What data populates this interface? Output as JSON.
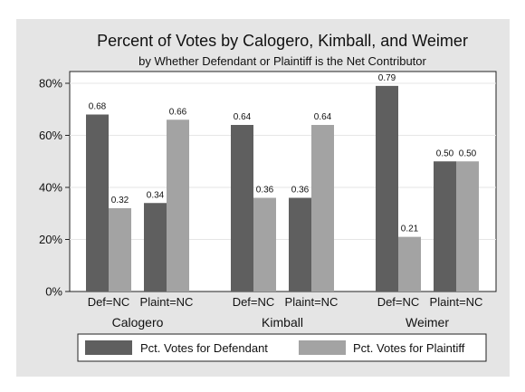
{
  "chart_data": {
    "type": "bar",
    "title": "Percent of Votes by Calogero, Kimball, and Weimer",
    "subtitle": "by Whether Defendant or Plaintiff is the Net Contributor",
    "groups": [
      {
        "name": "Calogero",
        "categories": [
          "Def=NC",
          "Plaint=NC"
        ]
      },
      {
        "name": "Kimball",
        "categories": [
          "Def=NC",
          "Plaint=NC"
        ]
      },
      {
        "name": "Weimer",
        "categories": [
          "Def=NC",
          "Plaint=NC"
        ]
      }
    ],
    "series": [
      {
        "name": "Pct. Votes for Defendant",
        "color": "#5f5f5f",
        "values": [
          0.68,
          0.34,
          0.64,
          0.36,
          0.79,
          0.5
        ],
        "labels": [
          "0.68",
          "0.34",
          "0.64",
          "0.36",
          "0.79",
          "0.50"
        ]
      },
      {
        "name": "Pct. Votes for Plaintiff",
        "color": "#a3a3a3",
        "values": [
          0.32,
          0.66,
          0.36,
          0.64,
          0.21,
          0.5
        ],
        "labels": [
          "0.32",
          "0.66",
          "0.36",
          "0.64",
          "0.21",
          "0.50"
        ]
      }
    ],
    "ylim": [
      0,
      0.85
    ],
    "yticks": [
      {
        "value": 0,
        "label": "0%"
      },
      {
        "value": 0.2,
        "label": "20%"
      },
      {
        "value": 0.4,
        "label": "40%"
      },
      {
        "value": 0.6,
        "label": "60%"
      },
      {
        "value": 0.8,
        "label": "80%"
      }
    ],
    "grid": true,
    "legend": "bottom",
    "background_color": "#e5e5e5",
    "plot_background": "#ffffff"
  }
}
